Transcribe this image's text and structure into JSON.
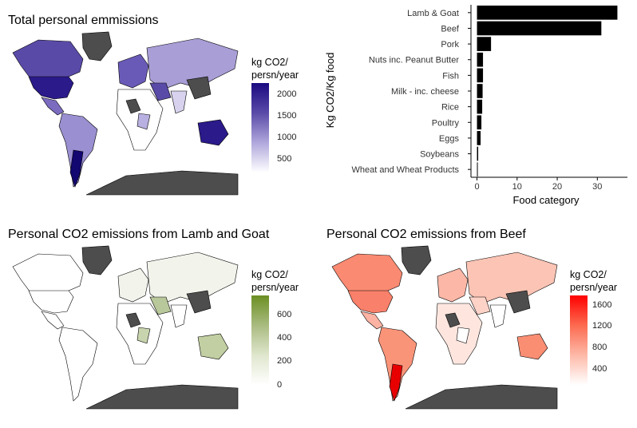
{
  "chart_data": [
    {
      "type": "heatmap",
      "title": "Total personal emmissions",
      "legend": {
        "title_line1": "kg CO2/",
        "title_line2": "persn/year",
        "ticks": [
          "2000",
          "1500",
          "1000",
          "500"
        ],
        "color_low": "#ffffff",
        "color_high": "#1a0a80"
      }
    },
    {
      "type": "bar",
      "orientation": "horizontal",
      "categories": [
        "Lamb & Goat",
        "Beef",
        "Pork",
        "Nuts inc. Peanut Butter",
        "Fish",
        "Milk - inc. cheese",
        "Rice",
        "Poultry",
        "Eggs",
        "Soybeans",
        "Wheat and Wheat Products"
      ],
      "values": [
        35,
        31,
        3.5,
        1.5,
        1.5,
        1.4,
        1.3,
        1.1,
        0.9,
        0.3,
        0.2
      ],
      "xlabel": "Food category",
      "ylabel": "Kg CO2/Kg food",
      "xlim": [
        -1.5,
        37.5
      ],
      "xticks": [
        0,
        10,
        20,
        30
      ],
      "bar_color": "#000000"
    },
    {
      "type": "heatmap",
      "title": "Personal CO2 emissions from Lamb and Goat",
      "legend": {
        "title_line1": "kg CO2/",
        "title_line2": "persn/year",
        "ticks": [
          "600",
          "400",
          "200",
          "0"
        ],
        "color_low": "#ffffff",
        "color_high": "#6b8e23"
      }
    },
    {
      "type": "heatmap",
      "title": "Personal CO2 emissions from Beef",
      "legend": {
        "title_line1": "kg CO2/",
        "title_line2": "persn/year",
        "ticks": [
          "1600",
          "1200",
          "800",
          "400"
        ],
        "color_low": "#ffffff",
        "color_high": "#ff0000"
      }
    }
  ]
}
